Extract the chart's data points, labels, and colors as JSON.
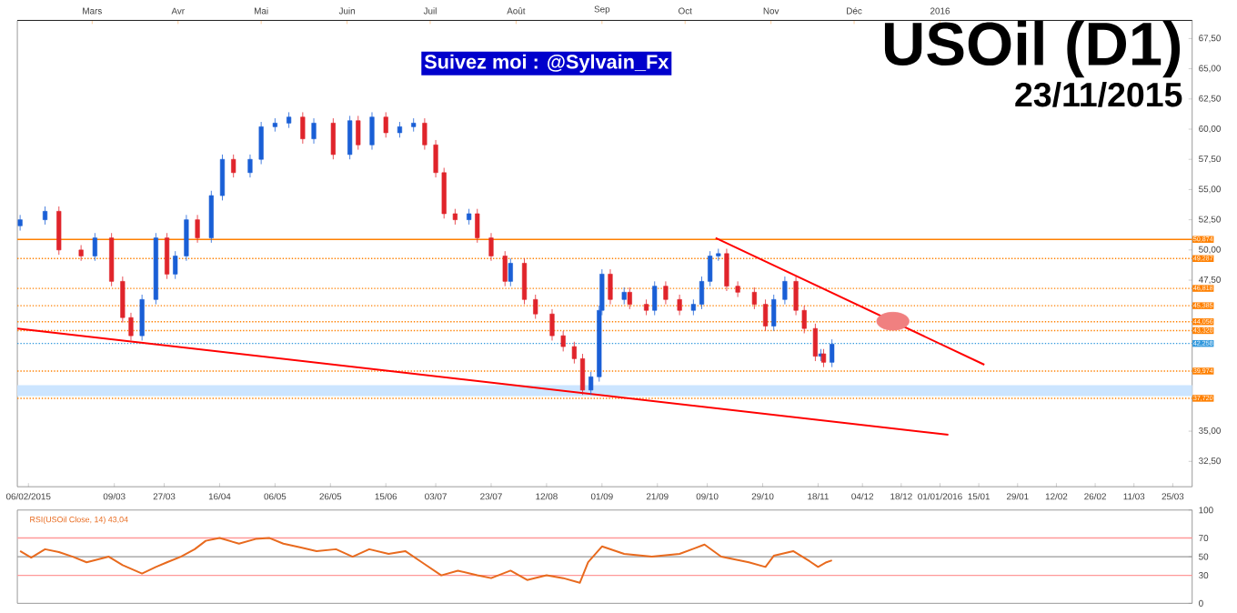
{
  "chart_data": [
    {
      "type": "candlestick",
      "title": "USOil (D1)",
      "subtitle": "23/11/2015",
      "annotations": [
        "Suivez moi : @Sylvain_Fx"
      ],
      "x": [
        "2015-02-03",
        "2015-02-12",
        "2015-02-17",
        "2015-02-25",
        "2015-03-02",
        "2015-03-08",
        "2015-03-12",
        "2015-03-15",
        "2015-03-19",
        "2015-03-24",
        "2015-03-28",
        "2015-03-31",
        "2015-04-04",
        "2015-04-08",
        "2015-04-13",
        "2015-04-17",
        "2015-04-21",
        "2015-04-27",
        "2015-05-01",
        "2015-05-06",
        "2015-05-11",
        "2015-05-16",
        "2015-05-20",
        "2015-05-27",
        "2015-06-02",
        "2015-06-05",
        "2015-06-10",
        "2015-06-15",
        "2015-06-20",
        "2015-06-25",
        "2015-06-29",
        "2015-07-03",
        "2015-07-06",
        "2015-07-10",
        "2015-07-15",
        "2015-07-18",
        "2015-07-23",
        "2015-07-28",
        "2015-07-30",
        "2015-08-04",
        "2015-08-08",
        "2015-08-14",
        "2015-08-18",
        "2015-08-22",
        "2015-08-25",
        "2015-08-28",
        "2015-08-31",
        "2015-09-01",
        "2015-09-04",
        "2015-09-09",
        "2015-09-11",
        "2015-09-17",
        "2015-09-20",
        "2015-09-24",
        "2015-09-29",
        "2015-10-04",
        "2015-10-07",
        "2015-10-10",
        "2015-10-13",
        "2015-10-16",
        "2015-10-20",
        "2015-10-26",
        "2015-10-30",
        "2015-11-02",
        "2015-11-06",
        "2015-11-10",
        "2015-11-13",
        "2015-11-17",
        "2015-11-19",
        "2015-11-20",
        "2015-11-23"
      ],
      "ohlc": [
        [
          52.0,
          52.9,
          51.6,
          52.5
        ],
        [
          52.5,
          53.6,
          52.1,
          53.2
        ],
        [
          53.2,
          53.6,
          49.6,
          50.0
        ],
        [
          50.0,
          50.4,
          49.1,
          49.5
        ],
        [
          49.5,
          51.4,
          49.1,
          51.0
        ],
        [
          51.0,
          51.4,
          47.0,
          47.4
        ],
        [
          47.4,
          47.8,
          44.0,
          44.4
        ],
        [
          44.4,
          44.8,
          42.5,
          42.9
        ],
        [
          42.9,
          46.3,
          42.5,
          45.9
        ],
        [
          45.9,
          51.4,
          45.5,
          51.0
        ],
        [
          51.0,
          51.4,
          47.6,
          48.0
        ],
        [
          48.0,
          49.9,
          47.6,
          49.5
        ],
        [
          49.5,
          52.9,
          49.1,
          52.5
        ],
        [
          52.5,
          52.9,
          50.6,
          51.0
        ],
        [
          51.0,
          54.9,
          50.6,
          54.5
        ],
        [
          54.5,
          57.9,
          54.1,
          57.5
        ],
        [
          57.5,
          57.9,
          56.0,
          56.4
        ],
        [
          56.4,
          57.9,
          56.0,
          57.5
        ],
        [
          57.5,
          60.6,
          57.1,
          60.2
        ],
        [
          60.2,
          60.9,
          59.8,
          60.5
        ],
        [
          60.5,
          61.4,
          60.1,
          61.0
        ],
        [
          61.0,
          61.4,
          58.8,
          59.2
        ],
        [
          59.2,
          60.9,
          58.8,
          60.5
        ],
        [
          60.5,
          60.9,
          57.5,
          57.9
        ],
        [
          57.9,
          61.1,
          57.5,
          60.7
        ],
        [
          60.7,
          61.1,
          58.3,
          58.7
        ],
        [
          58.7,
          61.4,
          58.3,
          61.0
        ],
        [
          61.0,
          61.4,
          59.3,
          59.7
        ],
        [
          59.7,
          60.6,
          59.3,
          60.2
        ],
        [
          60.2,
          60.9,
          59.8,
          60.5
        ],
        [
          60.5,
          60.9,
          58.3,
          58.7
        ],
        [
          58.7,
          59.1,
          56.0,
          56.4
        ],
        [
          56.4,
          56.8,
          52.6,
          53.0
        ],
        [
          53.0,
          53.4,
          52.1,
          52.5
        ],
        [
          52.5,
          53.4,
          52.1,
          53.0
        ],
        [
          53.0,
          53.4,
          50.6,
          51.0
        ],
        [
          51.0,
          51.4,
          49.1,
          49.5
        ],
        [
          49.5,
          49.9,
          47.0,
          47.4
        ],
        [
          47.4,
          49.3,
          47.0,
          48.9
        ],
        [
          48.9,
          49.3,
          45.5,
          45.9
        ],
        [
          45.9,
          46.3,
          44.3,
          44.7
        ],
        [
          44.7,
          45.1,
          42.5,
          42.9
        ],
        [
          42.9,
          43.3,
          41.6,
          42.0
        ],
        [
          42.0,
          42.4,
          40.6,
          41.0
        ],
        [
          41.0,
          41.4,
          38.0,
          38.4
        ],
        [
          38.4,
          39.9,
          38.0,
          39.5
        ],
        [
          39.5,
          45.4,
          39.1,
          45.0
        ],
        [
          45.0,
          48.4,
          44.6,
          48.0
        ],
        [
          48.0,
          48.4,
          45.5,
          45.9
        ],
        [
          45.9,
          46.9,
          45.5,
          46.5
        ],
        [
          46.5,
          46.9,
          45.1,
          45.5
        ],
        [
          45.5,
          45.9,
          44.6,
          45.0
        ],
        [
          45.0,
          47.4,
          44.6,
          47.0
        ],
        [
          47.0,
          47.4,
          45.5,
          45.9
        ],
        [
          45.9,
          46.3,
          44.6,
          45.0
        ],
        [
          45.0,
          45.9,
          44.6,
          45.5
        ],
        [
          45.5,
          47.8,
          45.1,
          47.4
        ],
        [
          47.4,
          49.9,
          47.0,
          49.5
        ],
        [
          49.5,
          50.1,
          49.1,
          49.7
        ],
        [
          49.7,
          50.1,
          46.6,
          47.0
        ],
        [
          47.0,
          47.4,
          46.1,
          46.5
        ],
        [
          46.5,
          46.9,
          45.1,
          45.5
        ],
        [
          45.5,
          45.9,
          43.3,
          43.7
        ],
        [
          43.7,
          46.3,
          43.3,
          45.9
        ],
        [
          45.9,
          47.8,
          45.5,
          47.4
        ],
        [
          47.4,
          47.8,
          44.6,
          45.0
        ],
        [
          45.0,
          45.4,
          43.1,
          43.5
        ],
        [
          43.5,
          43.9,
          40.8,
          41.2
        ],
        [
          41.2,
          41.8,
          40.8,
          41.4
        ],
        [
          41.4,
          41.8,
          40.3,
          40.7
        ],
        [
          40.7,
          42.6,
          40.3,
          42.2
        ]
      ],
      "series": [
        {
          "type": "line",
          "color": "#ff0000",
          "x": [
            "2015-02-02",
            "2016-01-04"
          ],
          "values": [
            43.5,
            34.7
          ]
        },
        {
          "type": "line",
          "color": "#ff0000",
          "x": [
            "2015-10-12",
            "2016-01-17"
          ],
          "values": [
            51.0,
            40.5
          ]
        },
        {
          "type": "scatter",
          "color": "#f08080",
          "marker": "circle",
          "x": [
            "2015-12-15"
          ],
          "values": [
            44.1
          ]
        }
      ],
      "bands": [
        {
          "axis": "y",
          "from": 37.9,
          "to": 38.8,
          "color": "#cce5ff"
        }
      ],
      "ref_lines": [
        {
          "axis": "y",
          "value": 50.874,
          "label": "50,874",
          "color": "#ff8000",
          "line_style": "solid"
        },
        {
          "axis": "y",
          "value": 49.287,
          "label": "49,287",
          "color": "#ff8000",
          "line_style": "dotted"
        },
        {
          "axis": "y",
          "value": 46.818,
          "label": "46,818",
          "color": "#ff8000",
          "line_style": "dotted"
        },
        {
          "axis": "y",
          "value": 45.385,
          "label": "45,385",
          "color": "#ff8000",
          "line_style": "dotted"
        },
        {
          "axis": "y",
          "value": 44.056,
          "label": "44,056",
          "color": "#ff8000",
          "line_style": "dotted"
        },
        {
          "axis": "y",
          "value": 43.328,
          "label": "43,328",
          "color": "#ff8000",
          "line_style": "dotted"
        },
        {
          "axis": "y",
          "value": 42.258,
          "label": "42,258",
          "color": "#3399dd",
          "line_style": "dotted"
        },
        {
          "axis": "y",
          "value": 39.974,
          "label": "39,974",
          "color": "#ff8000",
          "line_style": "dotted"
        },
        {
          "axis": "y",
          "value": 37.72,
          "label": "37,720",
          "color": "#ff8000",
          "line_style": "dotted"
        }
      ],
      "xlim": [
        "2015-02-02",
        "2016-04-01"
      ],
      "ylim": [
        30.4,
        69
      ],
      "yticks": [
        {
          "value": 32.5,
          "label": "32,50"
        },
        {
          "value": 35,
          "label": "35,00"
        },
        {
          "value": 47.5,
          "label": "47,50"
        },
        {
          "value": 50,
          "label": "50,00"
        },
        {
          "value": 52.5,
          "label": "52,50"
        },
        {
          "value": 55,
          "label": "55,00"
        },
        {
          "value": 57.5,
          "label": "57,50"
        },
        {
          "value": 60,
          "label": "60,00"
        },
        {
          "value": 62.5,
          "label": "62,50"
        },
        {
          "value": 65,
          "label": "65,00"
        },
        {
          "value": 67.5,
          "label": "67,50"
        }
      ],
      "xticks": [
        {
          "value": "2015-02-06",
          "label": "06/02/2015"
        },
        {
          "value": "2015-03-09",
          "label": "09/03"
        },
        {
          "value": "2015-03-27",
          "label": "27/03"
        },
        {
          "value": "2015-04-16",
          "label": "16/04"
        },
        {
          "value": "2015-05-06",
          "label": "06/05"
        },
        {
          "value": "2015-05-26",
          "label": "26/05"
        },
        {
          "value": "2015-06-15",
          "label": "15/06"
        },
        {
          "value": "2015-07-03",
          "label": "03/07"
        },
        {
          "value": "2015-07-23",
          "label": "23/07"
        },
        {
          "value": "2015-08-12",
          "label": "12/08"
        },
        {
          "value": "2015-09-01",
          "label": "01/09"
        },
        {
          "value": "2015-09-21",
          "label": "21/09"
        },
        {
          "value": "2015-10-09",
          "label": "09/10"
        },
        {
          "value": "2015-10-29",
          "label": "29/10"
        },
        {
          "value": "2015-11-18",
          "label": "18/11"
        },
        {
          "value": "2015-12-04",
          "label": "04/12"
        },
        {
          "value": "2015-12-18",
          "label": "18/12"
        },
        {
          "value": "2016-01-01",
          "label": "01/01/2016"
        },
        {
          "value": "2016-01-15",
          "label": "15/01"
        },
        {
          "value": "2016-01-29",
          "label": "29/01"
        },
        {
          "value": "2016-02-12",
          "label": "12/02"
        },
        {
          "value": "2016-02-26",
          "label": "26/02"
        },
        {
          "value": "2016-03-11",
          "label": "11/03"
        },
        {
          "value": "2016-03-25",
          "label": "25/03"
        }
      ],
      "x2lim": [
        "2015-02-02",
        "2016-04-01"
      ],
      "x2ticks": [
        {
          "value": "2015-03-01",
          "label": "Mars"
        },
        {
          "value": "2015-04-01",
          "label": "Avr"
        },
        {
          "value": "2015-05-01",
          "label": "Mai"
        },
        {
          "value": "2015-06-01",
          "label": "Juin"
        },
        {
          "value": "2015-07-01",
          "label": "Juil"
        },
        {
          "value": "2015-08-01",
          "label": "Août"
        },
        {
          "value": "2015-09-01",
          "label": "Sep"
        },
        {
          "value": "2015-10-01",
          "label": "Oct"
        },
        {
          "value": "2015-11-01",
          "label": "Nov"
        },
        {
          "value": "2015-12-01",
          "label": "Déc"
        },
        {
          "value": "2016-01-01",
          "label": "2016"
        }
      ]
    },
    {
      "type": "line",
      "title": "RSI(USOil Close, 14) 43,04",
      "series": [
        {
          "color": "#e86a1e",
          "x": [
            "2015-02-03",
            "2015-02-07",
            "2015-02-12",
            "2015-02-17",
            "2015-02-22",
            "2015-02-27",
            "2015-03-07",
            "2015-03-12",
            "2015-03-19",
            "2015-03-24",
            "2015-03-28",
            "2015-04-02",
            "2015-04-07",
            "2015-04-11",
            "2015-04-16",
            "2015-04-23",
            "2015-04-29",
            "2015-05-04",
            "2015-05-09",
            "2015-05-15",
            "2015-05-21",
            "2015-05-28",
            "2015-06-03",
            "2015-06-09",
            "2015-06-16",
            "2015-06-22",
            "2015-06-28",
            "2015-07-05",
            "2015-07-11",
            "2015-07-18",
            "2015-07-23",
            "2015-07-30",
            "2015-08-05",
            "2015-08-12",
            "2015-08-18",
            "2015-08-24",
            "2015-08-27",
            "2015-09-01",
            "2015-09-09",
            "2015-09-19",
            "2015-09-29",
            "2015-10-08",
            "2015-10-14",
            "2015-10-24",
            "2015-10-30",
            "2015-11-02",
            "2015-11-09",
            "2015-11-15",
            "2015-11-18",
            "2015-11-21",
            "2015-11-23"
          ],
          "values": [
            56,
            49,
            58,
            55,
            50,
            44,
            50,
            41,
            32,
            39,
            44,
            50,
            58,
            67,
            70,
            64,
            69,
            70,
            64,
            60,
            56,
            58,
            50,
            58,
            53,
            56,
            44,
            30,
            35,
            30,
            27,
            35,
            25,
            30,
            27,
            22,
            44,
            61,
            53,
            50,
            53,
            63,
            50,
            44,
            39,
            51,
            56,
            45,
            39,
            44,
            46
          ]
        }
      ],
      "ref_lines": [
        {
          "axis": "y",
          "value": 70,
          "color": "#ff9999",
          "line_style": "solid"
        },
        {
          "axis": "y",
          "value": 50,
          "color": "#999999",
          "line_style": "solid"
        },
        {
          "axis": "y",
          "value": 30,
          "color": "#ff9999",
          "line_style": "solid"
        }
      ],
      "xlim": [
        "2015-02-02",
        "2016-04-01"
      ],
      "ylim": [
        0,
        100
      ],
      "yticks": [
        0,
        30,
        50,
        70,
        100
      ],
      "tick_labels": "y"
    }
  ]
}
